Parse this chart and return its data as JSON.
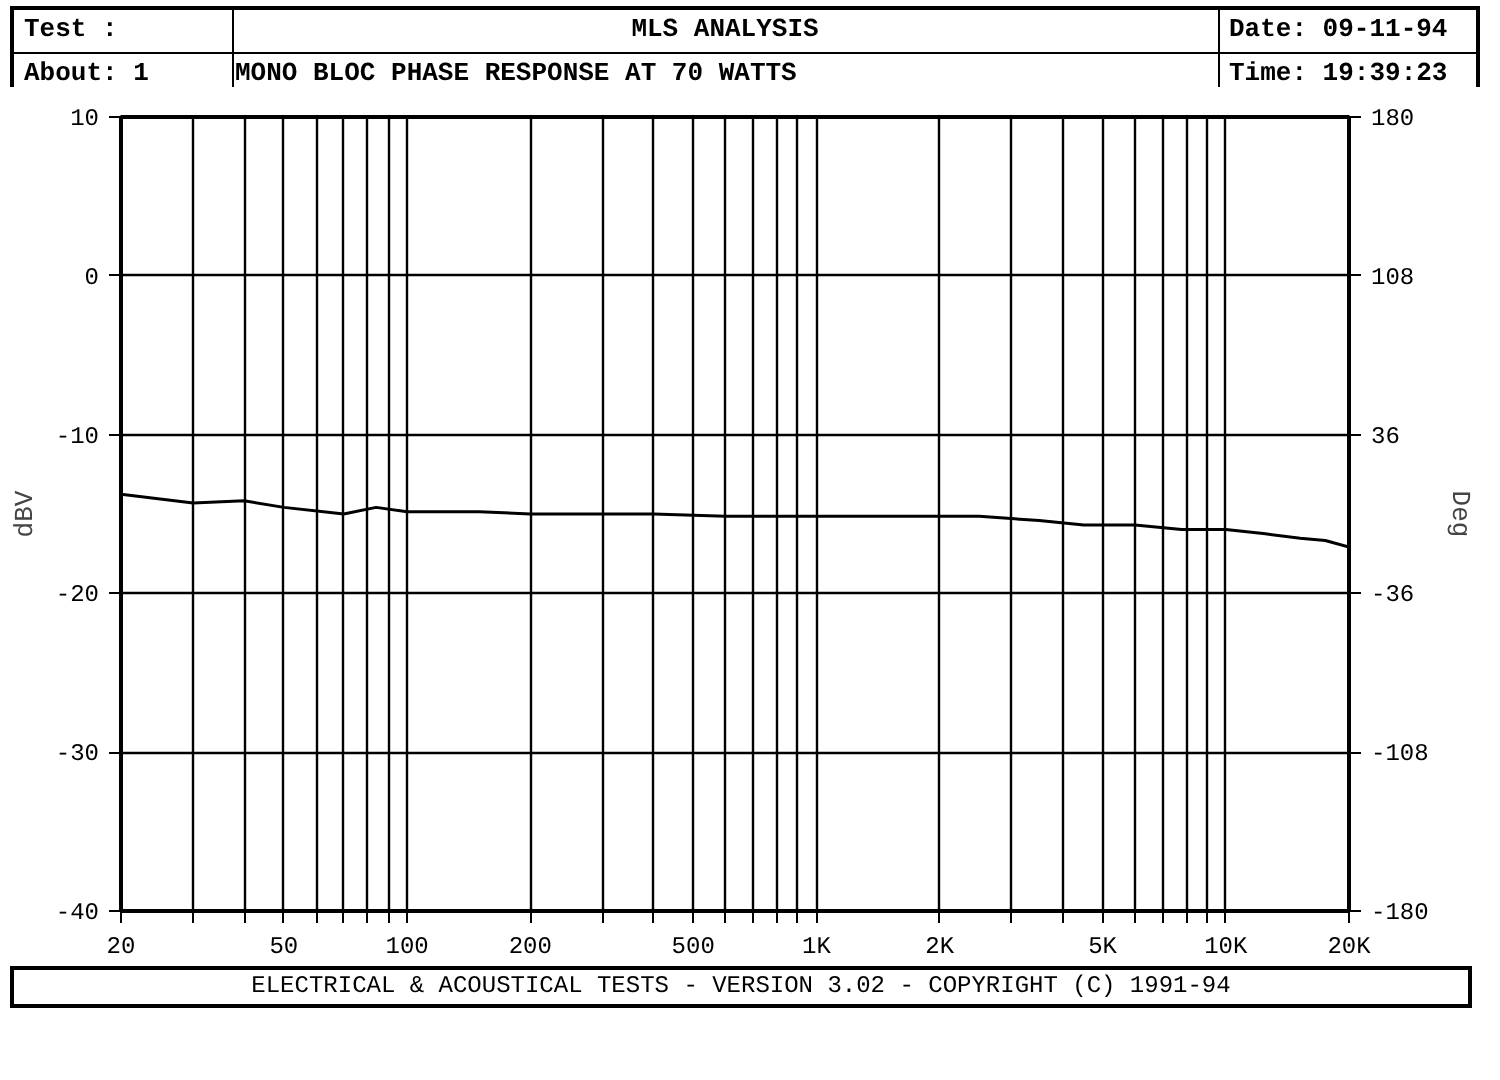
{
  "chart_data": {
    "type": "line",
    "title": "MLS ANALYSIS",
    "subtitle": "MONO BLOC PHASE RESPONSE AT 70 WATTS",
    "ylabel": "dBV",
    "y2label": "Deg",
    "annotations": [
      "Test :",
      "About:  1",
      "Date: 09-11-94",
      "Time: 19:39:23",
      "ELECTRICAL & ACOUSTICAL TESTS  -  VERSION 3.02  -  COPYRIGHT (C) 1991-94"
    ],
    "log": "x",
    "xlim": [
      20,
      20000
    ],
    "xticks": [
      20,
      {
        "value": 30,
        "label": null
      },
      {
        "value": 40,
        "label": null
      },
      50,
      {
        "value": 60,
        "label": null
      },
      {
        "value": 70,
        "label": null
      },
      {
        "value": 80,
        "label": null
      },
      {
        "value": 90,
        "label": null
      },
      100,
      200,
      {
        "value": 300,
        "label": null
      },
      {
        "value": 400,
        "label": null
      },
      500,
      {
        "value": 600,
        "label": null
      },
      {
        "value": 700,
        "label": null
      },
      {
        "value": 800,
        "label": null
      },
      {
        "value": 900,
        "label": null
      },
      {
        "value": 1000,
        "label": "1K"
      },
      {
        "value": 2000,
        "label": "2K"
      },
      {
        "value": 3000,
        "label": null
      },
      {
        "value": 4000,
        "label": null
      },
      {
        "value": 5000,
        "label": "5K"
      },
      {
        "value": 6000,
        "label": null
      },
      {
        "value": 7000,
        "label": null
      },
      {
        "value": 8000,
        "label": null
      },
      {
        "value": 9000,
        "label": null
      },
      {
        "value": 10000,
        "label": "10K"
      },
      {
        "value": 20000,
        "label": "20K"
      }
    ],
    "ylim": [
      -40,
      10
    ],
    "yticks": [
      -40,
      -30,
      -20,
      -10,
      0,
      10
    ],
    "y2lim": [
      -180,
      180
    ],
    "y2ticks": [
      -180,
      -108,
      -36,
      36,
      108,
      180
    ],
    "grid": true,
    "series": [
      {
        "color": "#000000",
        "axis": "y2",
        "x": [
          20,
          30,
          40,
          50,
          70,
          84,
          100,
          150,
          200,
          275,
          400,
          600,
          830,
          1200,
          1700,
          2500,
          3500,
          4500,
          6000,
          7800,
          10000,
          12500,
          15200,
          17500,
          20000
        ],
        "values": [
          9,
          5,
          6,
          3,
          0,
          3,
          1,
          1,
          0,
          0,
          0,
          -1,
          -1,
          -1,
          -1,
          -1,
          -3,
          -5,
          -5,
          -7,
          -7,
          -9,
          -11,
          -12,
          -15
        ]
      }
    ]
  }
}
